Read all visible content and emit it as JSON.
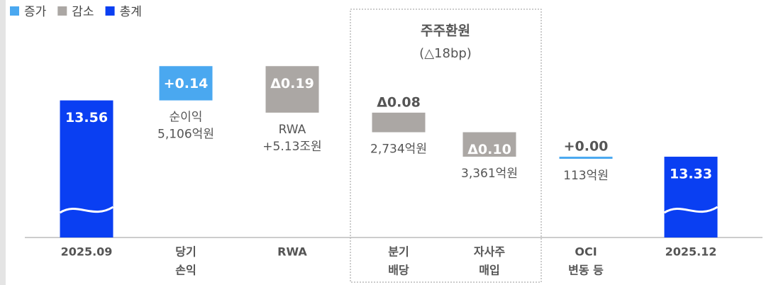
{
  "chart_data": {
    "type": "waterfall",
    "legend": [
      {
        "name": "증가",
        "color": "#4aa8f0"
      },
      {
        "name": "감소",
        "color": "#aba7a4"
      },
      {
        "name": "총계",
        "color": "#0a3ff2"
      }
    ],
    "categories": [
      [
        "2025.09"
      ],
      [
        "당기",
        "손익"
      ],
      [
        "RWA"
      ],
      [
        "분기",
        "배당"
      ],
      [
        "자사주",
        "매입"
      ],
      [
        "OCI",
        "변동 등"
      ],
      [
        "2025.12"
      ]
    ],
    "values": [
      13.56,
      0.14,
      -0.19,
      -0.08,
      -0.1,
      0.0,
      13.33
    ],
    "value_labels": [
      "13.56",
      "+0.14",
      "Δ0.19",
      "Δ0.08",
      "Δ0.10",
      "+0.00",
      "13.33"
    ],
    "notes": [
      null,
      [
        "순이익",
        "5,106억원"
      ],
      [
        "RWA",
        "+5.13조원"
      ],
      [
        "2,734억원"
      ],
      [
        "3,361억원"
      ],
      [
        "113억원"
      ],
      null
    ],
    "group": {
      "title": "주주환원",
      "subtitle": "(△18bp)"
    },
    "ylim": [
      13.0,
      13.75
    ]
  }
}
